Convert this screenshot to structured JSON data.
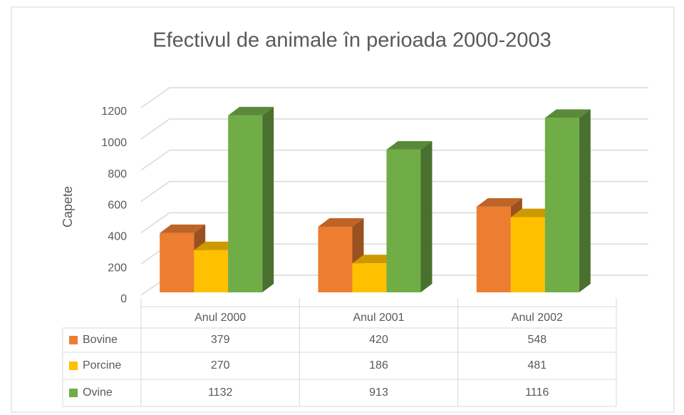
{
  "chart_data": {
    "type": "bar3d",
    "title": "Efectivul de animale în perioada 2000-2003",
    "y_label": "Capete",
    "categories": [
      "Anul 2000",
      "Anul 2001",
      "Anul 2002"
    ],
    "series": [
      {
        "name": "Bovine",
        "color": "#ed7d31",
        "values": [
          379,
          420,
          548
        ]
      },
      {
        "name": "Porcine",
        "color": "#ffc000",
        "values": [
          270,
          186,
          481
        ]
      },
      {
        "name": "Ovine",
        "color": "#70ad47",
        "values": [
          1132,
          913,
          1116
        ]
      }
    ],
    "ylim": [
      0,
      1200
    ],
    "yticks": [
      0,
      200,
      400,
      600,
      800,
      1000,
      1200
    ],
    "grid": true,
    "data_table": true
  }
}
